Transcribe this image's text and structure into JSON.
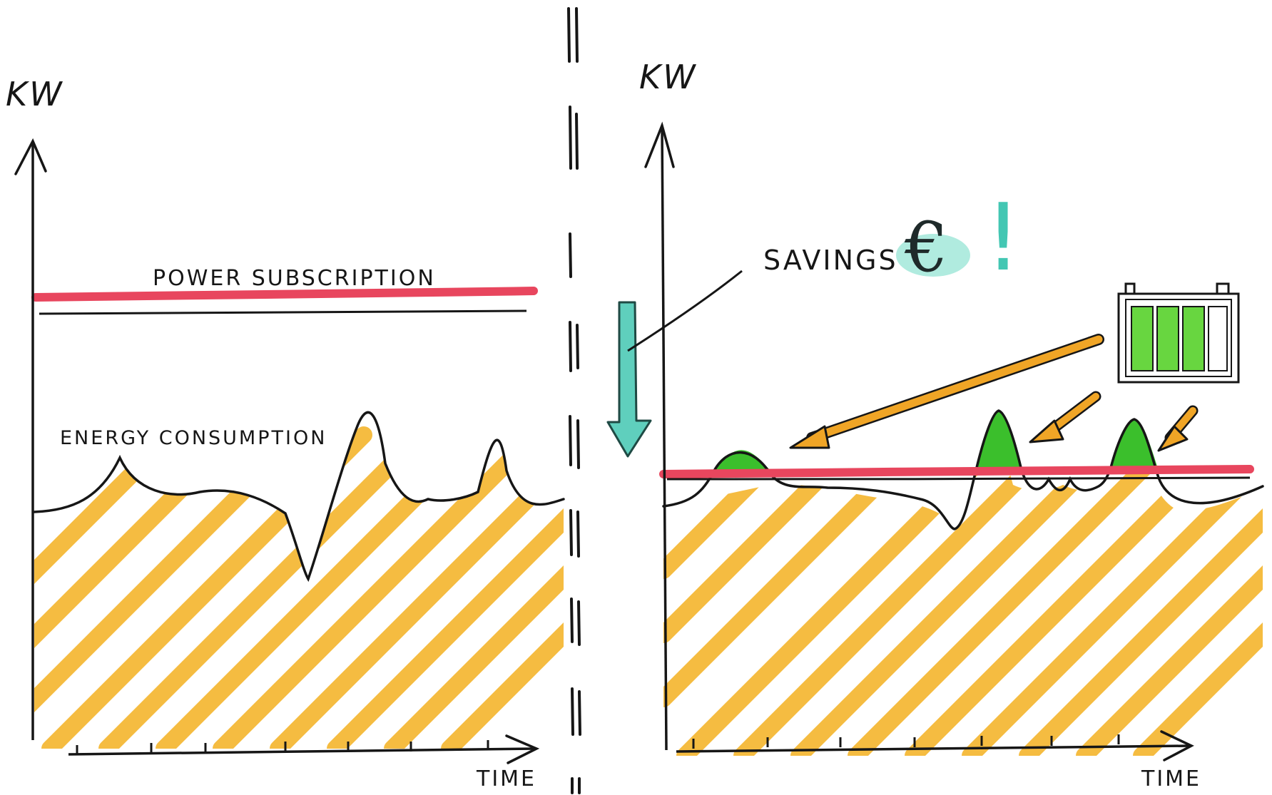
{
  "colors": {
    "ink": "#161616",
    "fill_orange": "#f5b731",
    "subscription_red": "#e8465e",
    "peak_green": "#3bbf2c",
    "arrow_teal": "#5fcfbd",
    "pointer_orange": "#f0a526",
    "battery_green": "#68d640"
  },
  "left_panel": {
    "y_axis_label": "KW",
    "x_axis_label": "TIME",
    "subscription_label": "POWER SUBSCRIPTION",
    "consumption_label": "ENERGY CONSUMPTION"
  },
  "right_panel": {
    "y_axis_label": "KW",
    "x_axis_label": "TIME",
    "savings_label": "SAVINGS",
    "currency_symbol": "€",
    "exclamation": "!"
  },
  "icons": {
    "battery": "battery-icon",
    "down_arrow": "down-arrow-icon",
    "pointer_arrows": "pointer-arrow-icon"
  }
}
